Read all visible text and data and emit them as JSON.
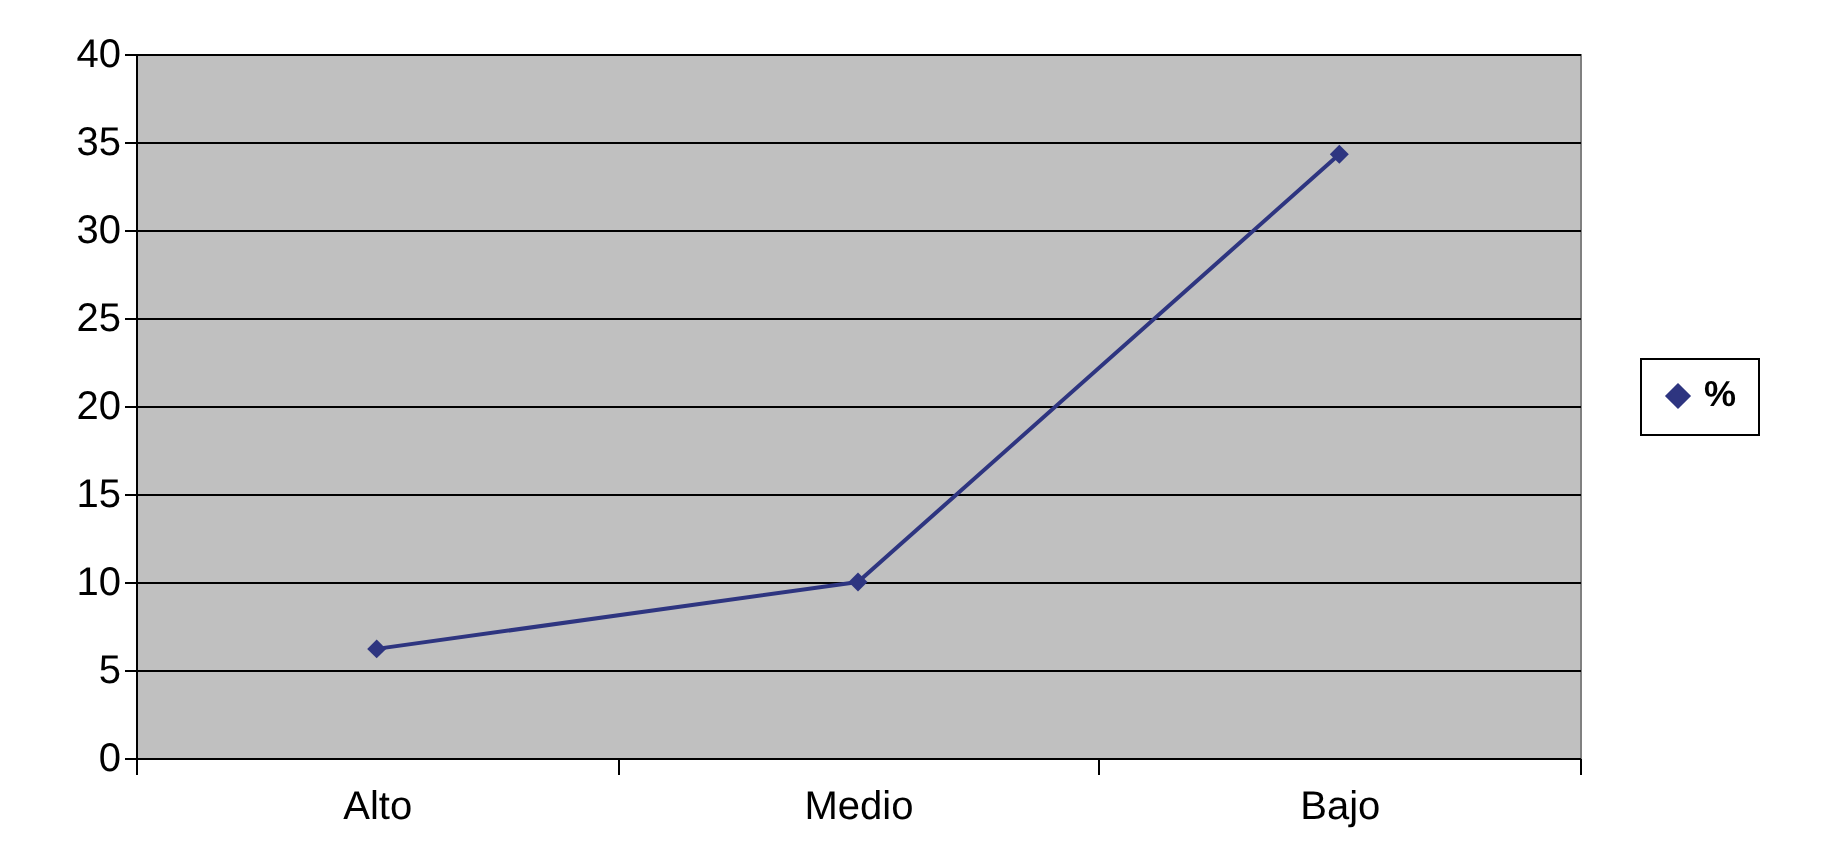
{
  "chart_data": {
    "type": "line",
    "categories": [
      "Alto",
      "Medio",
      "Bajo"
    ],
    "series": [
      {
        "name": "%",
        "color": "#2e3580",
        "values": [
          6.2,
          10,
          34.3
        ]
      }
    ],
    "ylim": [
      0,
      40
    ],
    "yticks": [
      0,
      5,
      10,
      15,
      20,
      25,
      30,
      35,
      40
    ],
    "grid": "y",
    "legend": "right",
    "marker": "diamond",
    "line_style": "solid"
  }
}
